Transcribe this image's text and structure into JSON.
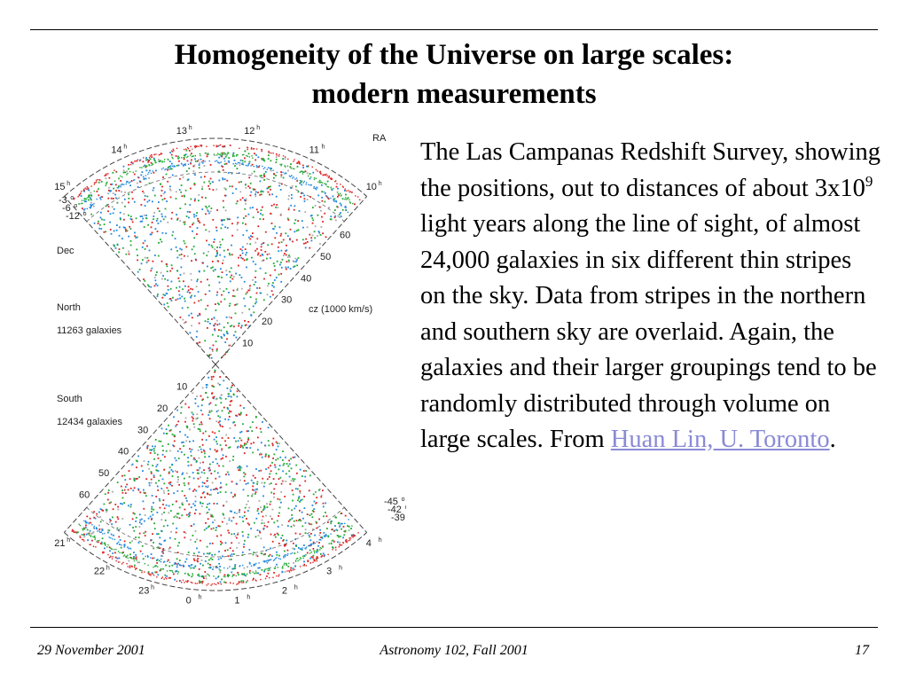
{
  "title": {
    "line1": "Homogeneity of the Universe on large scales:",
    "line2": "modern measurements"
  },
  "figure": {
    "ra_label": "RA",
    "dec_label": "Dec",
    "cz_label": "cz (1000 km/s)",
    "north": {
      "label": "North",
      "count": "11263 galaxies"
    },
    "south": {
      "label": "South",
      "count": "12434 galaxies"
    },
    "north_ra_hours": [
      {
        "hour": "10",
        "sup": "h"
      },
      {
        "hour": "11",
        "sup": "h"
      },
      {
        "hour": "12",
        "sup": "h"
      },
      {
        "hour": "13",
        "sup": "h"
      },
      {
        "hour": "14",
        "sup": "h"
      },
      {
        "hour": "15",
        "sup": "h"
      }
    ],
    "south_ra_hours": [
      {
        "hour": "21",
        "sup": "h"
      },
      {
        "hour": "22",
        "sup": "h"
      },
      {
        "hour": "23",
        "sup": "h"
      },
      {
        "hour": "0",
        "sup": "h"
      },
      {
        "hour": "1",
        "sup": "h"
      },
      {
        "hour": "2",
        "sup": "h"
      },
      {
        "hour": "3",
        "sup": "h"
      },
      {
        "hour": "4",
        "sup": "h"
      }
    ],
    "north_decs": [
      {
        "value": "-3",
        "sup": "o"
      },
      {
        "value": "-6",
        "sup": "o"
      },
      {
        "value": "-12",
        "sup": "o"
      }
    ],
    "south_decs": [
      {
        "value": "-45",
        "sup": "o"
      },
      {
        "value": "-42",
        "sup": "o"
      },
      {
        "value": "-39",
        "sup": "o"
      }
    ],
    "north_distance_ticks": [
      "10",
      "20",
      "30",
      "40",
      "50",
      "60"
    ],
    "south_distance_ticks": [
      "10",
      "20",
      "30",
      "40",
      "50",
      "60"
    ],
    "colors": {
      "red": "#dd2222",
      "green": "#22aa33",
      "blue": "#2288dd"
    }
  },
  "description": {
    "part1": "The Las Campanas Redshift Survey, showing the positions, out to distances of about 3x10",
    "sup": "9",
    "part2": " light years along the line of sight, of almost 24,000 galaxies in six different thin stripes on the sky. Data from stripes in the northern and southern sky are overlaid. Again, the galaxies and their larger groupings tend to be randomly distributed through volume on large scales. From ",
    "link": "Huan Lin, U. Toronto",
    "end": "."
  },
  "footer": {
    "date": "29 November 2001",
    "course": "Astronomy 102, Fall 2001",
    "page": "17"
  }
}
